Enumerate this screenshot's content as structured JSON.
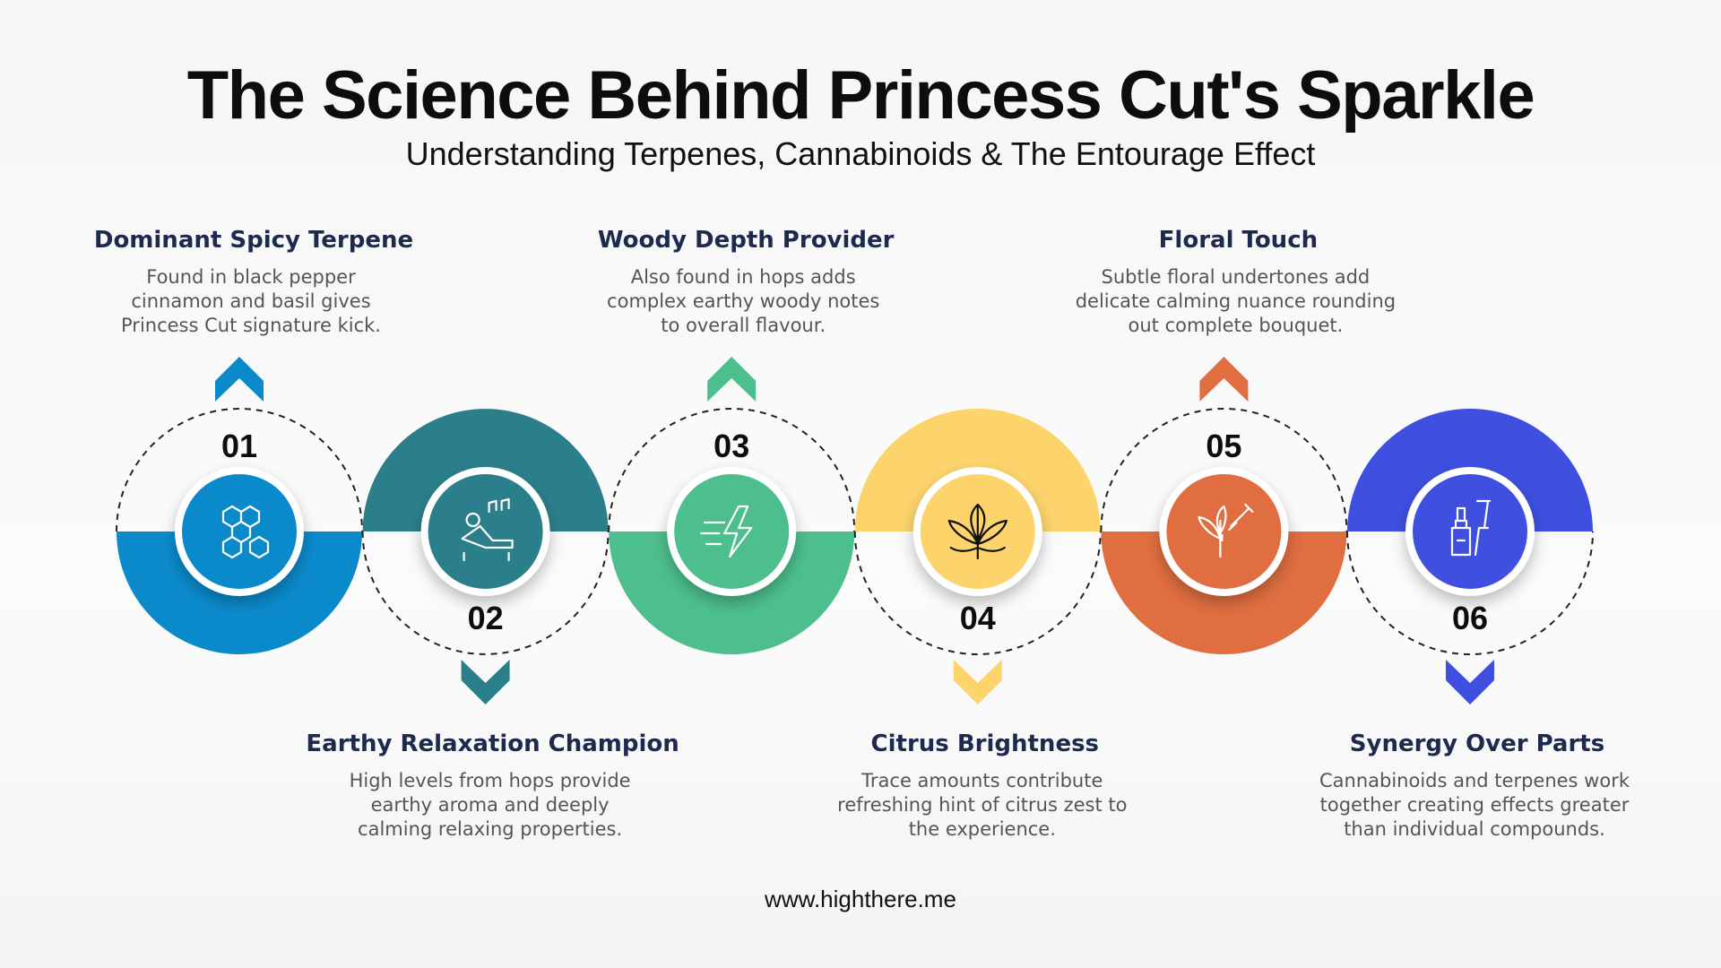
{
  "header": {
    "title": "The Science Behind Princess Cut's Sparkle",
    "subtitle": "Understanding Terpenes, Cannabinoids & The Entourage Effect"
  },
  "steps": [
    {
      "number": "01",
      "title": "Dominant Spicy Terpene",
      "description": [
        "Found in black pepper",
        "cinnamon and basil gives",
        "Princess Cut signature kick."
      ],
      "color": "#0b8acb"
    },
    {
      "number": "02",
      "title": "Earthy Relaxation Champion",
      "description": [
        "High levels from hops provide",
        "earthy aroma and deeply",
        "calming relaxing properties."
      ],
      "color": "#2b7f8b"
    },
    {
      "number": "03",
      "title": "Woody Depth Provider",
      "description": [
        "Also found in hops adds",
        "complex earthy woody notes",
        "to overall flavour."
      ],
      "color": "#4dbf8e"
    },
    {
      "number": "04",
      "title": "Citrus Brightness",
      "description": [
        "Trace amounts contribute",
        "refreshing hint of citrus zest to",
        "the experience."
      ],
      "color": "#fdd46c"
    },
    {
      "number": "05",
      "title": "Floral Touch",
      "description": [
        "Subtle floral undertones add",
        "delicate calming nuance rounding",
        "out complete bouquet."
      ],
      "color": "#e06e40"
    },
    {
      "number": "06",
      "title": "Synergy Over Parts",
      "description": [
        "Cannabinoids and terpenes work",
        "together creating effects greater",
        "than individual compounds."
      ],
      "color": "#3f4fe0"
    }
  ],
  "footer": {
    "url": "www.highthere.me"
  }
}
